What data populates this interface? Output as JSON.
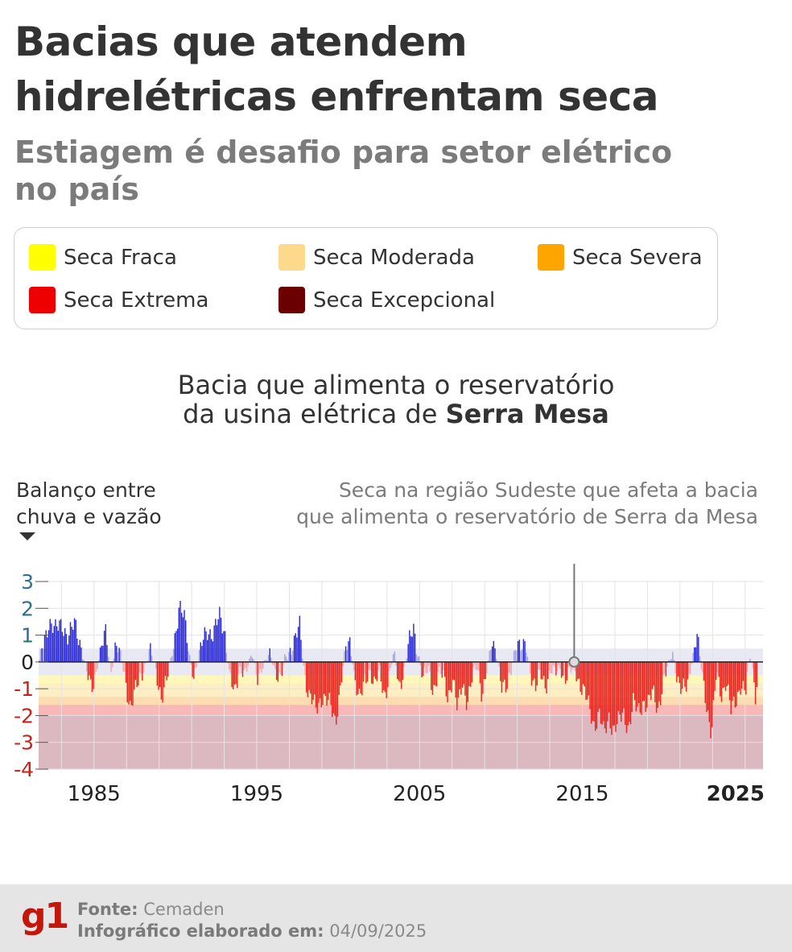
{
  "header": {
    "title_line1": "Bacias que atendem",
    "title_line2": "hidrelétricas enfrentam seca",
    "subtitle_line1": "Estiagem é desafio para setor elétrico",
    "subtitle_line2": "no país"
  },
  "legend": {
    "items": [
      {
        "label": "Seca Fraca",
        "color": "#ffff00"
      },
      {
        "label": "Seca Moderada",
        "color": "#fdd98b"
      },
      {
        "label": "Seca Severa",
        "color": "#ffa500"
      },
      {
        "label": "Seca Extrema",
        "color": "#ee0000"
      },
      {
        "label": "Seca Excepcional",
        "color": "#6a0000"
      }
    ]
  },
  "chart_heading": {
    "line1": "Bacia que alimenta o reservatório",
    "line2_prefix": "da usina elétrica de ",
    "line2_bold": "Serra Mesa"
  },
  "annotation": {
    "line1": "Seca na região Sudeste que afeta a bacia",
    "line2": "que alimenta o reservatório de Serra da Mesa",
    "year": 2014.5
  },
  "chart_data": {
    "type": "bar",
    "ylabel_line1": "Balanço entre",
    "ylabel_line2": "chuva e vazão",
    "ylim": [
      -4,
      3
    ],
    "yticks": [
      3,
      2,
      1,
      0,
      -1,
      -2,
      -3,
      -4
    ],
    "xlim": [
      1981.6,
      2026.1
    ],
    "xticks": [
      {
        "value": 1985,
        "label": "1985",
        "bold": false
      },
      {
        "value": 1995,
        "label": "1995",
        "bold": false
      },
      {
        "value": 2005,
        "label": "2005",
        "bold": false
      },
      {
        "value": 2015,
        "label": "2015",
        "bold": false
      },
      {
        "value": 2025,
        "label": "2025",
        "bold": true
      }
    ],
    "grid": true,
    "colors": {
      "wet_strong": "#2b2bd6",
      "wet_light": "#a7a7e0",
      "dry_strong": "#e8251f",
      "dry_light": "#f4a7a7",
      "neutral_band": "#e9e9f4"
    },
    "bands": [
      {
        "from": 0.5,
        "to": -0.5,
        "color": "#e9e9f4"
      },
      {
        "from": -0.5,
        "to": -0.8,
        "color": "#fff8b8"
      },
      {
        "from": -0.8,
        "to": -1.3,
        "color": "#fdeec4"
      },
      {
        "from": -1.3,
        "to": -1.6,
        "color": "#fddcb1"
      },
      {
        "from": -1.6,
        "to": -2.0,
        "color": "#f8b8b8"
      },
      {
        "from": -2.0,
        "to": -4.0,
        "color": "#dcb8c0"
      }
    ],
    "series_keyframes": [
      [
        1981.6,
        0.0
      ],
      [
        1981.9,
        0.8
      ],
      [
        1982.2,
        1.6
      ],
      [
        1982.6,
        1.1
      ],
      [
        1983.0,
        1.5
      ],
      [
        1983.4,
        0.9
      ],
      [
        1983.8,
        1.4
      ],
      [
        1984.2,
        0.6
      ],
      [
        1984.5,
        -0.4
      ],
      [
        1984.8,
        -1.1
      ],
      [
        1985.1,
        -0.3
      ],
      [
        1985.4,
        0.5
      ],
      [
        1985.7,
        1.0
      ],
      [
        1986.0,
        -0.4
      ],
      [
        1986.3,
        0.7
      ],
      [
        1986.6,
        0.2
      ],
      [
        1986.9,
        -0.7
      ],
      [
        1987.2,
        -1.6
      ],
      [
        1987.6,
        -1.0
      ],
      [
        1988.0,
        -0.3
      ],
      [
        1988.4,
        0.5
      ],
      [
        1988.8,
        -0.5
      ],
      [
        1989.1,
        -1.2
      ],
      [
        1989.5,
        -0.6
      ],
      [
        1989.9,
        0.8
      ],
      [
        1990.2,
        2.2
      ],
      [
        1990.5,
        1.6
      ],
      [
        1990.8,
        0.3
      ],
      [
        1991.1,
        -0.5
      ],
      [
        1991.5,
        0.4
      ],
      [
        1991.9,
        1.3
      ],
      [
        1992.3,
        1.0
      ],
      [
        1992.7,
        1.7
      ],
      [
        1993.0,
        1.2
      ],
      [
        1993.3,
        -0.6
      ],
      [
        1993.6,
        -1.3
      ],
      [
        1993.9,
        -0.2
      ],
      [
        1994.3,
        -0.4
      ],
      [
        1994.7,
        0.3
      ],
      [
        1995.0,
        -0.5
      ],
      [
        1995.4,
        -0.2
      ],
      [
        1995.8,
        0.4
      ],
      [
        1996.1,
        -0.3
      ],
      [
        1996.4,
        -0.9
      ],
      [
        1996.7,
        0.2
      ],
      [
        1997.0,
        0.5
      ],
      [
        1997.3,
        0.7
      ],
      [
        1997.6,
        1.3
      ],
      [
        1997.9,
        -0.4
      ],
      [
        1998.2,
        -1.3
      ],
      [
        1998.6,
        -1.8
      ],
      [
        1999.0,
        -1.2
      ],
      [
        1999.4,
        -1.6
      ],
      [
        1999.8,
        -2.2
      ],
      [
        2000.1,
        -0.9
      ],
      [
        2000.4,
        0.4
      ],
      [
        2000.7,
        0.7
      ],
      [
        2001.0,
        -0.6
      ],
      [
        2001.3,
        -1.5
      ],
      [
        2001.6,
        -0.8
      ],
      [
        2001.9,
        -0.2
      ],
      [
        2002.2,
        -0.9
      ],
      [
        2002.5,
        -0.4
      ],
      [
        2002.8,
        -1.2
      ],
      [
        2003.1,
        -0.5
      ],
      [
        2003.4,
        0.3
      ],
      [
        2003.7,
        -0.9
      ],
      [
        2004.0,
        -0.3
      ],
      [
        2004.3,
        0.6
      ],
      [
        2004.6,
        1.2
      ],
      [
        2004.9,
        0.3
      ],
      [
        2005.2,
        -0.7
      ],
      [
        2005.5,
        -0.3
      ],
      [
        2005.8,
        -1.0
      ],
      [
        2006.1,
        -0.4
      ],
      [
        2006.4,
        -0.6
      ],
      [
        2006.7,
        -1.3
      ],
      [
        2007.0,
        -0.5
      ],
      [
        2007.3,
        -1.9
      ],
      [
        2007.6,
        -0.8
      ],
      [
        2007.9,
        -1.4
      ],
      [
        2008.2,
        -0.6
      ],
      [
        2008.5,
        -0.2
      ],
      [
        2008.8,
        -1.1
      ],
      [
        2009.1,
        -0.3
      ],
      [
        2009.4,
        0.6
      ],
      [
        2009.7,
        0.4
      ],
      [
        2010.0,
        -0.8
      ],
      [
        2010.3,
        -1.2
      ],
      [
        2010.6,
        -0.3
      ],
      [
        2010.9,
        0.9
      ],
      [
        2011.2,
        0.4
      ],
      [
        2011.5,
        0.6
      ],
      [
        2011.8,
        -0.4
      ],
      [
        2012.1,
        -1.0
      ],
      [
        2012.4,
        -0.5
      ],
      [
        2012.7,
        -0.8
      ],
      [
        2013.0,
        -0.3
      ],
      [
        2013.3,
        -0.5
      ],
      [
        2013.6,
        -0.2
      ],
      [
        2013.9,
        -0.6
      ],
      [
        2014.2,
        -0.4
      ],
      [
        2014.5,
        -0.3
      ],
      [
        2014.8,
        -0.7
      ],
      [
        2015.1,
        -1.2
      ],
      [
        2015.4,
        -1.8
      ],
      [
        2015.7,
        -2.3
      ],
      [
        2016.0,
        -1.9
      ],
      [
        2016.3,
        -2.8
      ],
      [
        2016.6,
        -2.0
      ],
      [
        2016.9,
        -2.5
      ],
      [
        2017.2,
        -2.3
      ],
      [
        2017.5,
        -1.9
      ],
      [
        2017.8,
        -2.4
      ],
      [
        2018.1,
        -1.6
      ],
      [
        2018.4,
        -1.9
      ],
      [
        2018.7,
        -1.4
      ],
      [
        2019.0,
        -1.6
      ],
      [
        2019.3,
        -1.2
      ],
      [
        2019.6,
        -1.7
      ],
      [
        2019.9,
        -0.8
      ],
      [
        2020.2,
        -0.3
      ],
      [
        2020.5,
        0.4
      ],
      [
        2020.8,
        -0.6
      ],
      [
        2021.1,
        -1.2
      ],
      [
        2021.4,
        -0.9
      ],
      [
        2021.7,
        0.1
      ],
      [
        2022.0,
        1.0
      ],
      [
        2022.3,
        -0.4
      ],
      [
        2022.6,
        -1.5
      ],
      [
        2022.9,
        -2.7
      ],
      [
        2023.2,
        -0.5
      ],
      [
        2023.5,
        -1.2
      ],
      [
        2023.8,
        -0.6
      ],
      [
        2024.1,
        -1.9
      ],
      [
        2024.4,
        -1.5
      ],
      [
        2024.7,
        -0.7
      ],
      [
        2025.0,
        -1.2
      ],
      [
        2025.3,
        0.3
      ],
      [
        2025.6,
        -1.1
      ],
      [
        2025.7,
        -0.6
      ]
    ]
  },
  "footer": {
    "logo": "g1",
    "source_label": "Fonte:",
    "source_value": "Cemaden",
    "date_label": "Infográfico elaborado em:",
    "date_value": "04/09/2025"
  }
}
